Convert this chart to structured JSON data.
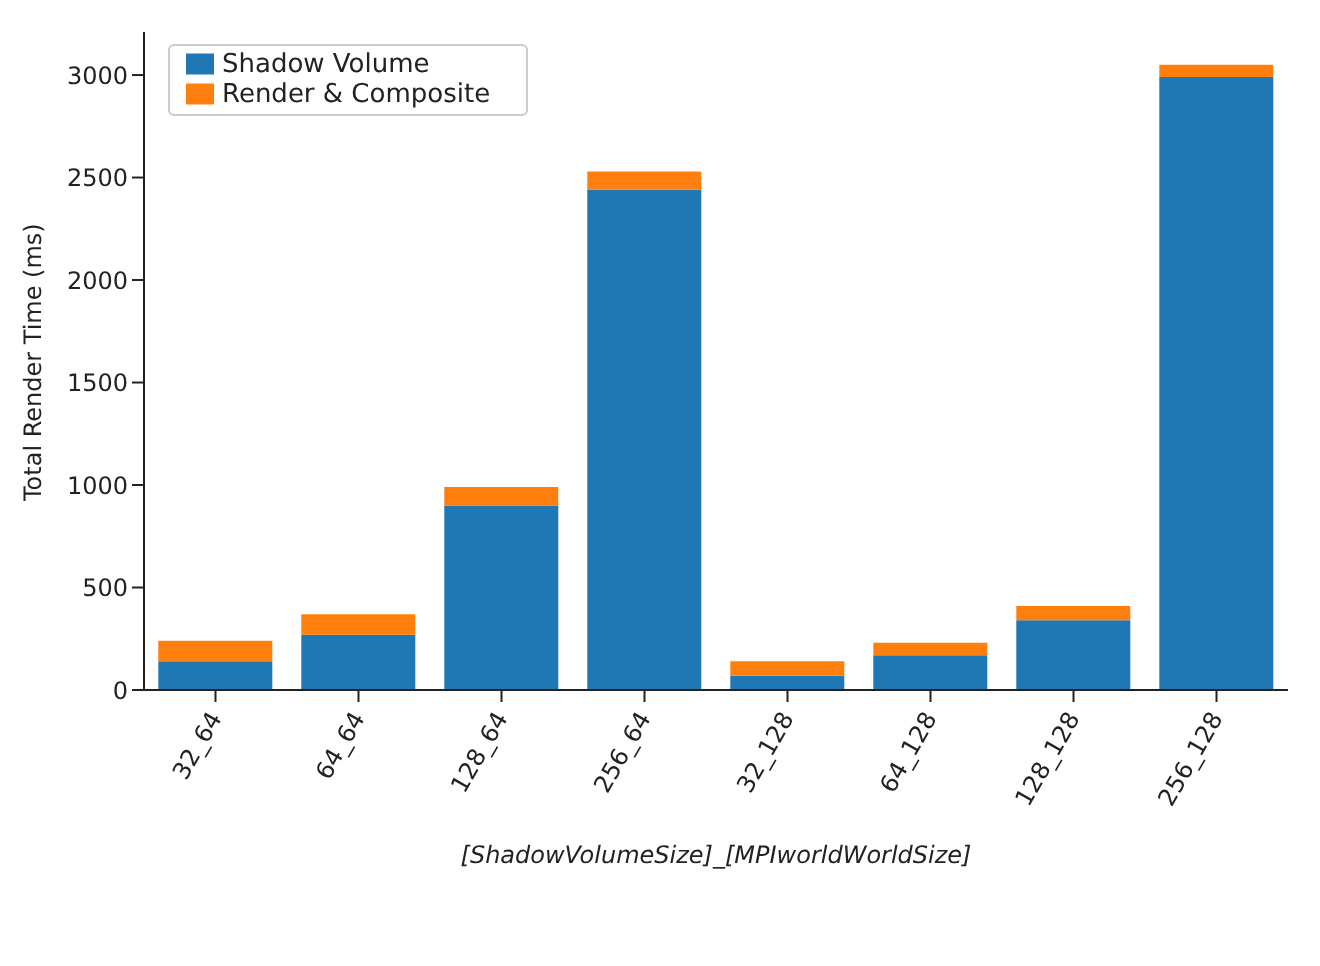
{
  "chart_data": {
    "type": "bar",
    "stacked": true,
    "xlabel": "[ShadowVolumeSize]_[MPIworldWorldSize]",
    "ylabel": "Total Render Time (ms)",
    "categories": [
      "32_64",
      "64_64",
      "128_64",
      "256_64",
      "32_128",
      "64_128",
      "128_128",
      "256_128"
    ],
    "series": [
      {
        "name": "Shadow Volume",
        "color": "#1f77b4",
        "values": [
          140,
          270,
          900,
          2440,
          70,
          170,
          340,
          2990
        ]
      },
      {
        "name": "Render & Composite",
        "color": "#ff7f0e",
        "values": [
          100,
          100,
          90,
          90,
          70,
          60,
          70,
          60
        ]
      }
    ],
    "ylim": [
      0,
      3210
    ],
    "yticks": [
      0,
      500,
      1000,
      1500,
      2000,
      2500,
      3000
    ],
    "legend": "top left",
    "grid": false
  }
}
